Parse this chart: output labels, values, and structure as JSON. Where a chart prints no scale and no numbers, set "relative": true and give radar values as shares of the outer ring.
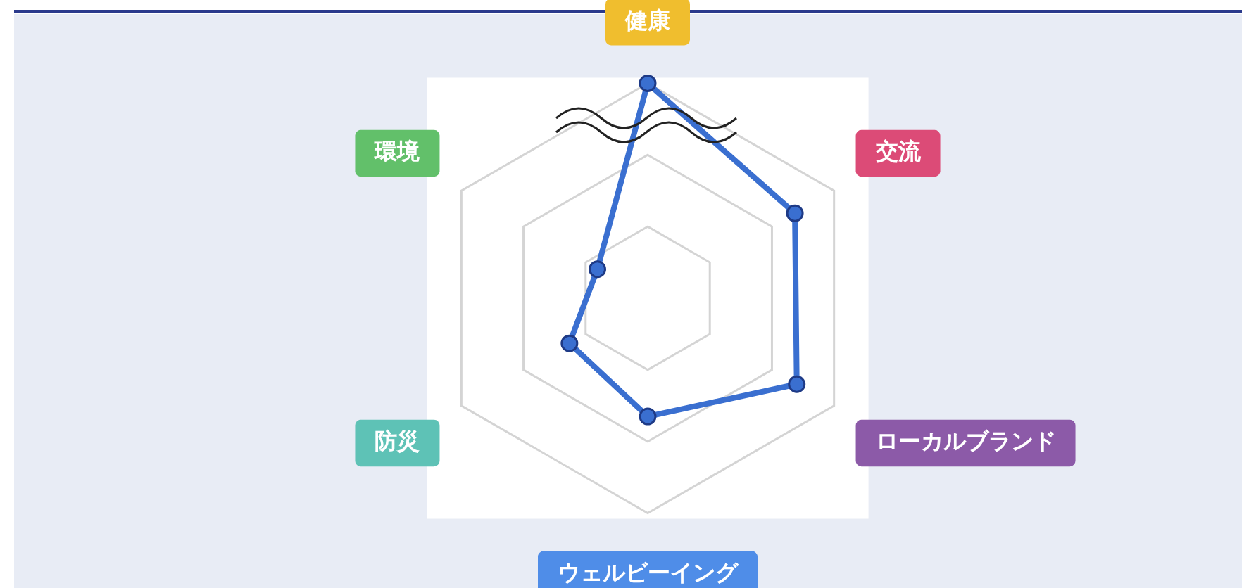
{
  "chart_data": {
    "type": "radar",
    "categories": [
      "健康",
      "交流",
      "ローカルブランド",
      "ウェルビーイング",
      "防災",
      "環境"
    ],
    "relative": true,
    "grid": true,
    "marker": "circle",
    "series": [
      {
        "color": "#3a6fd0",
        "values": [
          1,
          0.79,
          0.8,
          0.55,
          0.42,
          0.27
        ]
      }
    ]
  }
}
